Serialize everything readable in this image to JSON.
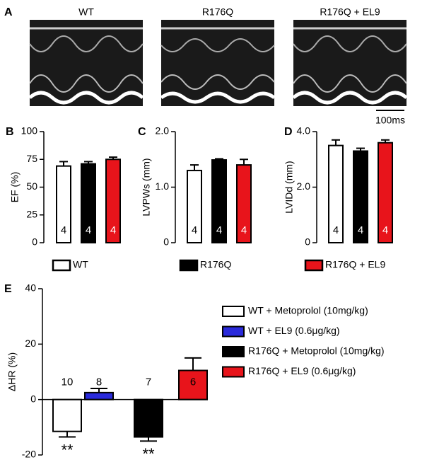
{
  "panel_a": {
    "label": "A",
    "titles": [
      "WT",
      "R176Q",
      "R176Q + EL9"
    ],
    "scale_bar": "100ms"
  },
  "legend": {
    "names": [
      "WT",
      "R176Q",
      "R176Q + EL9"
    ]
  },
  "chart_data": [
    {
      "type": "bar",
      "panel": "B",
      "ylabel": "EF (%)",
      "values": [
        69,
        71,
        75
      ],
      "errors": [
        4,
        2,
        2
      ],
      "n": [
        4,
        4,
        4
      ],
      "colors": [
        "#ffffff",
        "#000000",
        "#e8141b"
      ],
      "ylim": [
        0,
        100
      ],
      "yticks": [
        0,
        25,
        50,
        75,
        100
      ]
    },
    {
      "type": "bar",
      "panel": "C",
      "ylabel": "LVPWs (mm)",
      "values": [
        1.3,
        1.49,
        1.4
      ],
      "errors": [
        0.1,
        0.02,
        0.1
      ],
      "n": [
        4,
        4,
        4
      ],
      "colors": [
        "#ffffff",
        "#000000",
        "#e8141b"
      ],
      "ylim": [
        0,
        2
      ],
      "yticks": [
        0,
        {
          "value": 1,
          "label": "1.0"
        },
        {
          "value": 2,
          "label": "2.0"
        }
      ]
    },
    {
      "type": "bar",
      "panel": "D",
      "ylabel": "LVIDd (mm)",
      "values": [
        3.5,
        3.3,
        3.6
      ],
      "errors": [
        0.2,
        0.1,
        0.1
      ],
      "n": [
        4,
        4,
        4
      ],
      "colors": [
        "#ffffff",
        "#000000",
        "#e8141b"
      ],
      "ylim": [
        0,
        4
      ],
      "yticks": [
        0,
        {
          "value": 2,
          "label": "2.0"
        },
        {
          "value": 4,
          "label": "4.0"
        }
      ]
    },
    {
      "type": "bar",
      "panel": "E",
      "ylabel": "ΔHR (%)",
      "values": [
        -11.5,
        2.5,
        -13.5,
        10.5
      ],
      "errors": [
        2,
        1.5,
        1.5,
        4.5
      ],
      "n": [
        10,
        8,
        7,
        6
      ],
      "colors": [
        "#ffffff",
        "#2a2adb",
        "#000000",
        "#e8141b"
      ],
      "ylim": [
        -20,
        40
      ],
      "yticks": [
        -20,
        0,
        20,
        40
      ],
      "legend": [
        "WT + Metoprolol (10mg/kg)",
        "WT + EL9 (0.6μg/kg)",
        "R176Q + Metoprolol (10mg/kg)",
        "R176Q + EL9 (0.6μg/kg)"
      ],
      "annotations": [
        {
          "index": 0,
          "text": "**"
        },
        {
          "index": 2,
          "text": "**"
        }
      ]
    }
  ]
}
